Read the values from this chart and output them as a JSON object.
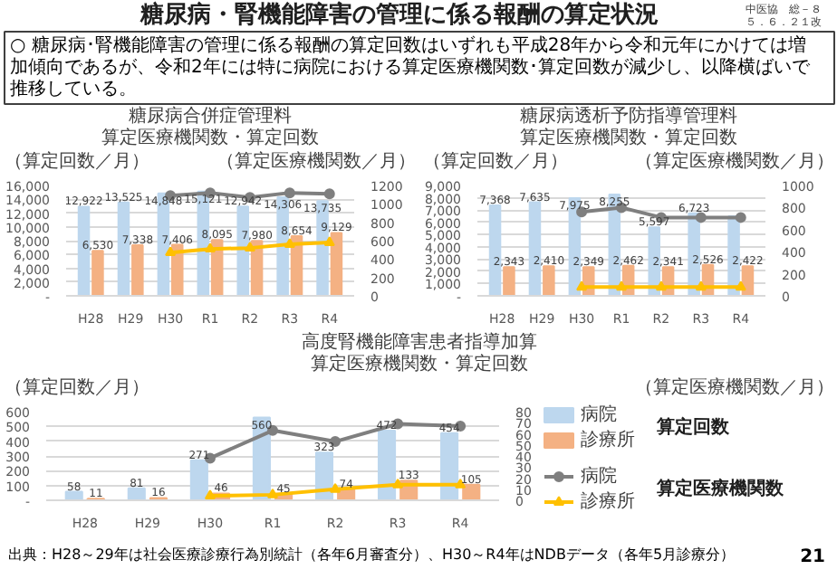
{
  "chart_data": [
    {
      "type": "other",
      "title": "糖尿病・腎機能障害の管理に係る報酬の算定状況",
      "annotations": [
        "中医協　総－８",
        "５．６．２１改",
        "○ 糖尿病･腎機能障害の管理に係る報酬の算定回数はいずれも平成28年から令和元年にかけては増加傾向であるが、令和2年には特に病院における算定医療機関数･算定回数が減少し、以降横ばいで推移している。",
        "出典：H28～29年は社会医療診療行為別統計（各年6月審査分）、H30～R4年はNDBデータ（各年5月診療分）",
        "21"
      ]
    },
    {
      "type": "bar",
      "title": "糖尿病合併症管理料",
      "subtitle": "算定医療機関数・算定回数",
      "ylabel": "（算定回数／月）",
      "y2label": "（算定医療機関数／月）",
      "categories": [
        "H28",
        "H29",
        "H30",
        "R1",
        "R2",
        "R3",
        "R4"
      ],
      "series": [
        {
          "color": "#bdd7ee",
          "values": [
            12922,
            13525,
            14848,
            15121,
            12942,
            14306,
            13735
          ],
          "value_labels": [
            "12,922",
            "13,525",
            "14,848",
            "15,121",
            "12,942",
            "14,306",
            "13,735"
          ]
        },
        {
          "color": "#f4b183",
          "values": [
            6530,
            7338,
            7406,
            8095,
            7980,
            8654,
            9129
          ],
          "value_labels": [
            "6,530",
            "7,338",
            "7,406",
            "8,095",
            "7,980",
            "8,654",
            "9,129"
          ]
        },
        {
          "type": "line",
          "axis": "y2",
          "color": "#7f7f7f",
          "marker": "circle",
          "values": [
            null,
            null,
            1090,
            1120,
            1070,
            1120,
            1110
          ]
        },
        {
          "type": "line",
          "axis": "y2",
          "color": "#ffc000",
          "marker": "triangle",
          "values": [
            null,
            null,
            470,
            510,
            520,
            560,
            580
          ]
        }
      ],
      "ylim": [
        0,
        16000
      ],
      "yticks": [
        {
          "value": 0,
          "label": "-"
        },
        {
          "value": 2000,
          "label": "2,000"
        },
        {
          "value": 4000,
          "label": "4,000"
        },
        {
          "value": 6000,
          "label": "6,000"
        },
        {
          "value": 8000,
          "label": "8,000"
        },
        {
          "value": 10000,
          "label": "10,000"
        },
        {
          "value": 12000,
          "label": "12,000"
        },
        {
          "value": 14000,
          "label": "14,000"
        },
        {
          "value": 16000,
          "label": "16,000"
        }
      ],
      "y2lim": [
        0,
        1200
      ],
      "y2ticks": [
        0,
        200,
        400,
        600,
        800,
        1000,
        1200
      ],
      "grid": "y"
    },
    {
      "type": "bar",
      "title": "糖尿病透析予防指導管理料",
      "subtitle": "算定医療機関数・算定回数",
      "ylabel": "（算定回数／月）",
      "y2label": "（算定医療機関数／月）",
      "categories": [
        "H28",
        "H29",
        "H30",
        "R1",
        "R2",
        "R3",
        "R4"
      ],
      "series": [
        {
          "color": "#bdd7ee",
          "values": [
            7368,
            7635,
            7975,
            8255,
            5597,
            6723,
            6500
          ],
          "value_labels": [
            "7,368",
            "7,635",
            "7,975",
            "8,255",
            "5,597",
            "6,723",
            null
          ]
        },
        {
          "color": "#f4b183",
          "values": [
            2343,
            2410,
            2349,
            2462,
            2341,
            2526,
            2422
          ],
          "value_labels": [
            "2,343",
            "2,410",
            "2,349",
            "2,462",
            "2,341",
            "2,526",
            "2,422"
          ]
        },
        {
          "type": "line",
          "axis": "y2",
          "color": "#7f7f7f",
          "marker": "circle",
          "values": [
            null,
            null,
            760,
            800,
            710,
            710,
            710
          ]
        },
        {
          "type": "line",
          "axis": "y2",
          "color": "#ffc000",
          "marker": "triangle",
          "values": [
            null,
            null,
            80,
            80,
            80,
            80,
            80
          ]
        }
      ],
      "ylim": [
        0,
        9000
      ],
      "yticks": [
        {
          "value": 0,
          "label": "-"
        },
        {
          "value": 1000,
          "label": "1,000"
        },
        {
          "value": 2000,
          "label": "2,000"
        },
        {
          "value": 3000,
          "label": "3,000"
        },
        {
          "value": 4000,
          "label": "4,000"
        },
        {
          "value": 5000,
          "label": "5,000"
        },
        {
          "value": 6000,
          "label": "6,000"
        },
        {
          "value": 7000,
          "label": "7,000"
        },
        {
          "value": 8000,
          "label": "8,000"
        },
        {
          "value": 9000,
          "label": "9,000"
        }
      ],
      "y2lim": [
        0,
        1000
      ],
      "y2ticks": [
        0,
        200,
        400,
        600,
        800,
        1000
      ],
      "grid": "y"
    },
    {
      "type": "bar",
      "title": "高度腎機能障害患者指導加算",
      "subtitle": "算定医療機関数・算定回数",
      "ylabel": "（算定回数／月）",
      "y2label": "（算定医療機関数／月）",
      "categories": [
        "H28",
        "H29",
        "H30",
        "R1",
        "R2",
        "R3",
        "R4"
      ],
      "series": [
        {
          "name": "病院",
          "color": "#bdd7ee",
          "values": [
            58,
            81,
            271,
            560,
            323,
            472,
            454
          ],
          "value_labels": [
            "58",
            "81",
            "271",
            "560",
            "323",
            "472",
            "454"
          ]
        },
        {
          "name": "診療所",
          "color": "#f4b183",
          "values": [
            11,
            16,
            46,
            45,
            74,
            133,
            105
          ],
          "value_labels": [
            "11",
            "16",
            "46",
            "45",
            "74",
            "133",
            "105"
          ]
        },
        {
          "type": "line",
          "name": "病院",
          "axis": "y2",
          "color": "#7f7f7f",
          "marker": "circle",
          "values": [
            null,
            null,
            38,
            63,
            53,
            69,
            67
          ]
        },
        {
          "type": "line",
          "name": "診療所",
          "axis": "y2",
          "color": "#ffc000",
          "marker": "triangle",
          "values": [
            null,
            null,
            4,
            5,
            10,
            14,
            14
          ]
        }
      ],
      "ylim": [
        0,
        600
      ],
      "yticks": [
        {
          "value": 0,
          "label": "-"
        },
        100,
        200,
        300,
        400,
        500,
        600
      ],
      "y2lim": [
        0,
        80
      ],
      "y2ticks": [
        0,
        10,
        20,
        30,
        40,
        50,
        60,
        70,
        80
      ],
      "grid": "y",
      "legend": "right",
      "annotations": [
        "算定回数",
        "算定医療機関数"
      ]
    }
  ]
}
